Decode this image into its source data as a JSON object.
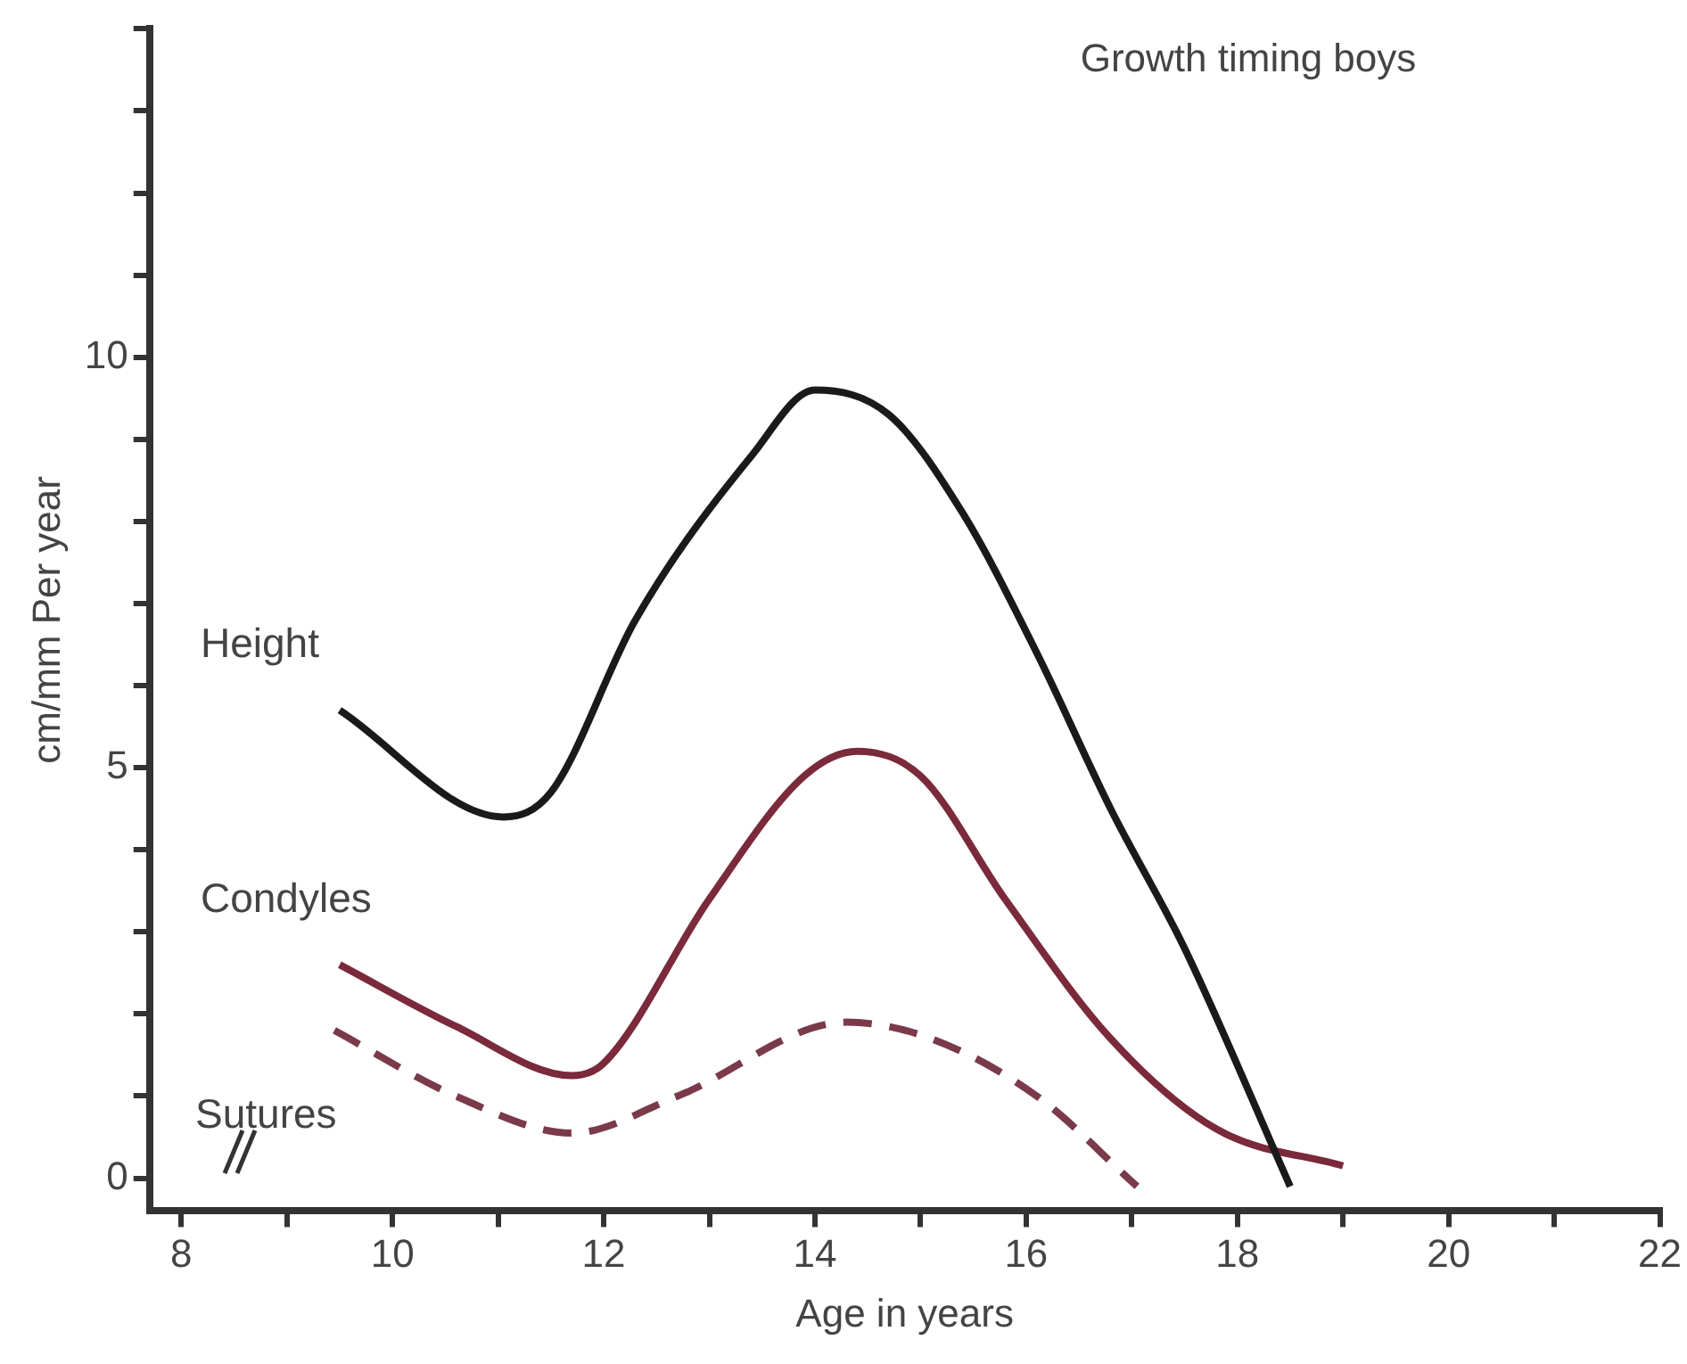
{
  "chart_data": {
    "type": "line",
    "title": "Growth timing boys",
    "xlabel": "Age in years",
    "ylabel": "cm/mm Per year",
    "xlim": [
      7.7,
      22
    ],
    "xticks": [
      8,
      {
        "value": 9,
        "label": null
      },
      10,
      {
        "value": 11,
        "label": null
      },
      12,
      {
        "value": 13,
        "label": null
      },
      14,
      {
        "value": 15,
        "label": null
      },
      16,
      {
        "value": 17,
        "label": null
      },
      18,
      {
        "value": 19,
        "label": null
      },
      20,
      {
        "value": 21,
        "label": null
      },
      22
    ],
    "ylim": [
      -0.4,
      14
    ],
    "yticks": [
      0,
      {
        "value": 1,
        "label": null
      },
      {
        "value": 2,
        "label": null
      },
      {
        "value": 3,
        "label": null
      },
      {
        "value": 4,
        "label": null
      },
      5,
      {
        "value": 6,
        "label": null
      },
      {
        "value": 7,
        "label": null
      },
      {
        "value": 8,
        "label": null
      },
      {
        "value": 9,
        "label": null
      },
      10,
      {
        "value": 11,
        "label": null
      },
      {
        "value": 12,
        "label": null
      },
      {
        "value": 13,
        "label": null
      },
      {
        "value": 14,
        "label": null
      }
    ],
    "grid": false,
    "legend": false,
    "marker": "none",
    "series": [
      {
        "name": "Height",
        "color": "#1a1a1a",
        "line_style": "solid",
        "x": [
          9.5,
          11.05,
          11.5,
          12.3,
          13.4,
          14.0,
          14.7,
          15.4,
          16.1,
          16.8,
          17.5,
          18.5
        ],
        "values": [
          5.7,
          4.4,
          4.7,
          6.8,
          8.8,
          9.6,
          9.3,
          8.1,
          6.4,
          4.5,
          2.8,
          -0.1
        ]
      },
      {
        "name": "Condyles",
        "color": "#7a2a3a",
        "line_style": "solid",
        "x": [
          9.5,
          10.6,
          11.7,
          12.0,
          13.0,
          13.9,
          14.4,
          15.0,
          15.8,
          16.8,
          17.8,
          19.0
        ],
        "values": [
          2.6,
          1.85,
          1.25,
          1.4,
          3.4,
          4.9,
          5.2,
          4.9,
          3.4,
          1.7,
          0.6,
          0.15
        ]
      },
      {
        "name": "Sutures",
        "color": "#7a3a4a",
        "line_style": "dashed",
        "x": [
          9.45,
          10.6,
          11.7,
          12.7,
          14.3,
          15.1,
          16.1,
          17.05
        ],
        "values": [
          1.8,
          1.0,
          0.55,
          1.0,
          1.9,
          1.7,
          1.0,
          -0.1
        ]
      }
    ]
  }
}
